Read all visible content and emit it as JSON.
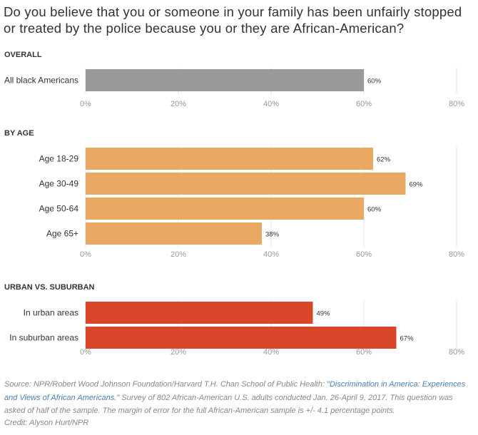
{
  "title": "Do you believe that you or someone in your family has been unfairly stopped or treated by the police because you or they are African-American?",
  "chart_data": [
    {
      "type": "bar",
      "orientation": "horizontal",
      "section_title": "OVERALL",
      "categories": [
        "All black Americans"
      ],
      "values": [
        60
      ],
      "value_labels": [
        "60%"
      ],
      "color": "#999999",
      "xlim": [
        0,
        80
      ],
      "xticks": [
        "0%",
        "20%",
        "40%",
        "60%",
        "80%"
      ]
    },
    {
      "type": "bar",
      "orientation": "horizontal",
      "section_title": "BY AGE",
      "categories": [
        "Age 18-29",
        "Age 30-49",
        "Age 50-64",
        "Age 65+"
      ],
      "values": [
        62,
        69,
        60,
        38
      ],
      "value_labels": [
        "62%",
        "69%",
        "60%",
        "38%"
      ],
      "color": "#e9a962",
      "xlim": [
        0,
        80
      ],
      "xticks": [
        "0%",
        "20%",
        "40%",
        "60%",
        "80%"
      ]
    },
    {
      "type": "bar",
      "orientation": "horizontal",
      "section_title": "URBAN VS. SUBURBAN",
      "categories": [
        "In urban areas",
        "In suburban areas"
      ],
      "values": [
        49,
        67
      ],
      "value_labels": [
        "49%",
        "67%"
      ],
      "color": "#d9472b",
      "xlim": [
        0,
        80
      ],
      "xticks": [
        "0%",
        "20%",
        "40%",
        "60%",
        "80%"
      ]
    }
  ],
  "source": {
    "prefix": "Source: NPR/Robert Wood Johnson Foundation/Harvard T.H. Chan School of Public Health: ",
    "link": "\"Discrimination in America: Experiences and Views of African Americans.\"",
    "suffix": " Survey of 802 African-American U.S. adults conducted Jan. 26-April 9, 2017. This question was asked of half of the sample. The margin of error for the full African-American sample is +/- 4.1 percentage points."
  },
  "credit": "Credit: Alyson Hurt/NPR"
}
